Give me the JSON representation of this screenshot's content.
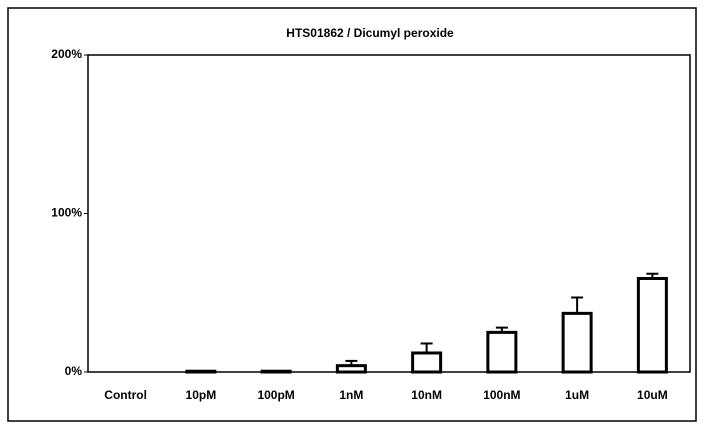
{
  "chart_data": {
    "type": "bar",
    "title": "HTS01862 / Dicumyl peroxide",
    "categories": [
      "Control",
      "10pM",
      "100pM",
      "1nM",
      "10nM",
      "100nM",
      "1uM",
      "10uM"
    ],
    "values": [
      0,
      0.5,
      0.5,
      4,
      12,
      25,
      37,
      59
    ],
    "errors": [
      0,
      0,
      0,
      3,
      6,
      3,
      10,
      3
    ],
    "color": "#ffffff",
    "ylim": [
      0,
      200
    ],
    "yticks": [
      {
        "value": 0,
        "label": "0%"
      },
      {
        "value": 100,
        "label": "100%"
      },
      {
        "value": 200,
        "label": "200%"
      }
    ],
    "grid": false
  }
}
